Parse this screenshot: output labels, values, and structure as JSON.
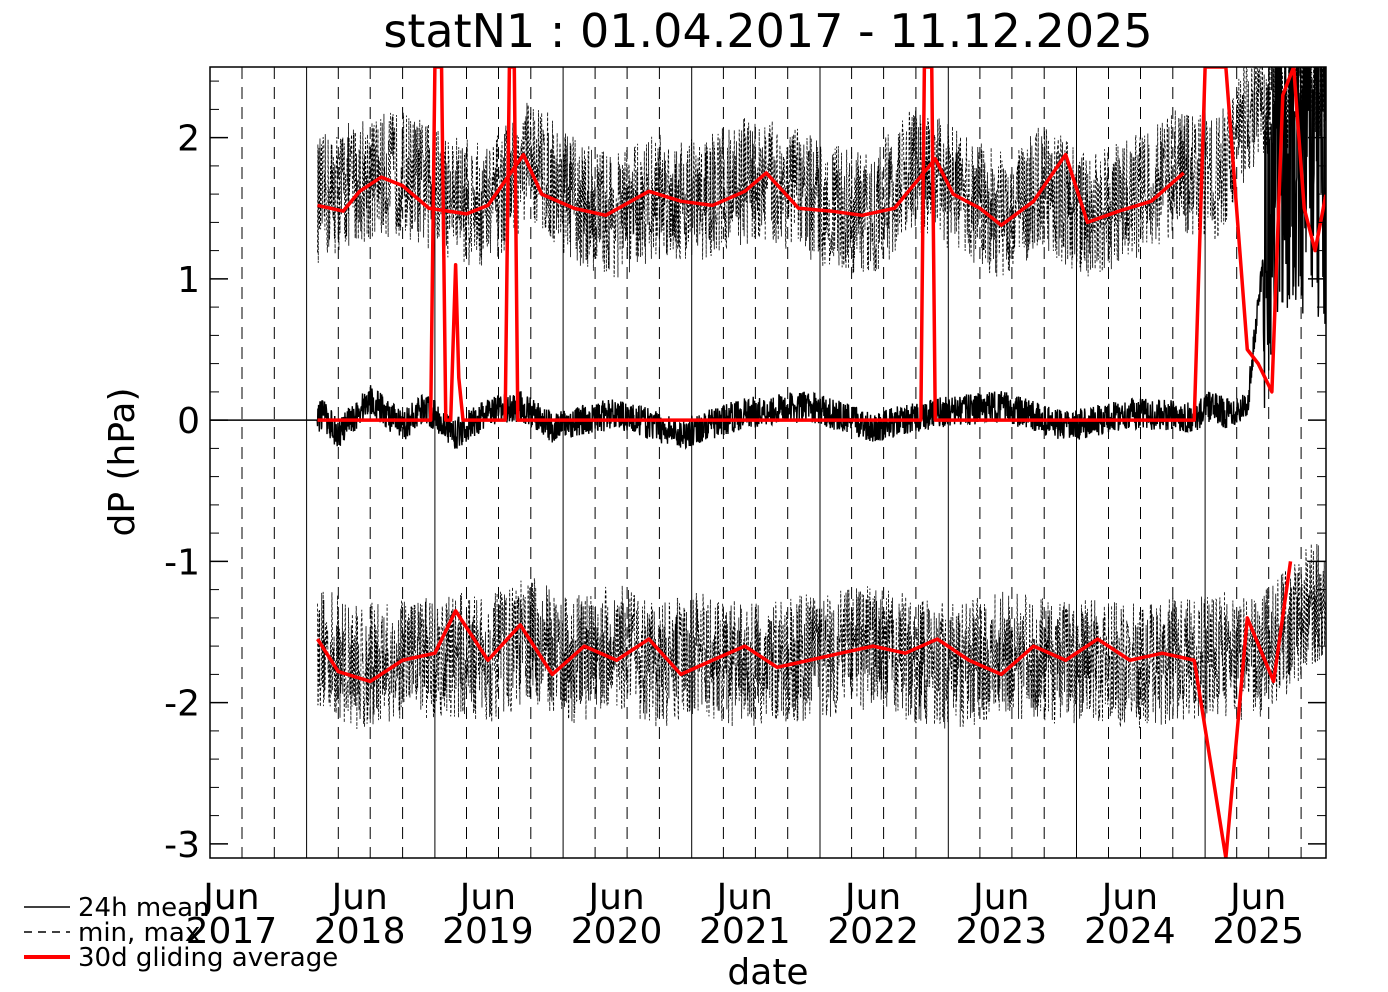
{
  "chart_data": {
    "type": "line",
    "title": "statN1 : 01.04.2017 - 11.12.2025",
    "xlabel": "date",
    "ylabel": "dP (hPa)",
    "x_range": [
      "2017-04-01",
      "2025-12-11"
    ],
    "ylim": [
      -3.1,
      2.5
    ],
    "y_ticks": [
      -3,
      -2,
      -1,
      0,
      1,
      2
    ],
    "x_tick_labels": [
      {
        "month": "Jun",
        "year": "2017",
        "date": "2017-06-01"
      },
      {
        "month": "Jun",
        "year": "2018",
        "date": "2018-06-01"
      },
      {
        "month": "Jun",
        "year": "2019",
        "date": "2019-06-01"
      },
      {
        "month": "Jun",
        "year": "2020",
        "date": "2020-06-01"
      },
      {
        "month": "Jun",
        "year": "2021",
        "date": "2021-06-01"
      },
      {
        "month": "Jun",
        "year": "2022",
        "date": "2022-06-01"
      },
      {
        "month": "Jun",
        "year": "2023",
        "date": "2023-06-01"
      },
      {
        "month": "Jun",
        "year": "2024",
        "date": "2024-06-01"
      },
      {
        "month": "Jun",
        "year": "2025",
        "date": "2025-06-01"
      }
    ],
    "grid": "vertical lines at quarters (solid at January, dashed otherwise)",
    "legend": "bottom-left",
    "series": [
      {
        "name": "24h mean",
        "style": "solid",
        "color": "#000000",
        "dates": [
          "2017-04-01",
          "2018-01-31",
          "2018-02-15",
          "2018-04-01",
          "2018-07-01",
          "2018-10-01",
          "2018-12-01",
          "2019-03-01",
          "2019-06-01",
          "2019-09-01",
          "2019-12-01",
          "2020-06-01",
          "2020-12-01",
          "2021-06-01",
          "2021-12-01",
          "2022-06-01",
          "2022-12-01",
          "2023-06-01",
          "2023-12-01",
          "2024-06-01",
          "2024-12-01",
          "2025-01-15",
          "2025-03-01",
          "2025-05-01",
          "2025-07-01",
          "2025-09-01",
          "2025-12-11"
        ],
        "values": [
          0,
          0,
          0.05,
          -0.1,
          0.15,
          -0.05,
          0.1,
          -0.1,
          0.05,
          0.1,
          -0.05,
          0.05,
          -0.1,
          0.05,
          0.1,
          -0.05,
          0.05,
          0.1,
          -0.05,
          0.05,
          0.02,
          0.1,
          0.05,
          0.1,
          1.5,
          2.0,
          1.8
        ]
      },
      {
        "name": "min, max",
        "style": "dashed",
        "color": "#000000",
        "dates": [
          "2018-02-01",
          "2018-06-01",
          "2018-10-01",
          "2019-02-01",
          "2019-06-01",
          "2019-10-01",
          "2020-02-01",
          "2020-06-01",
          "2020-10-01",
          "2021-02-01",
          "2021-06-01",
          "2021-10-01",
          "2022-02-01",
          "2022-06-01",
          "2022-10-01",
          "2023-02-01",
          "2023-06-01",
          "2023-10-01",
          "2024-02-01",
          "2024-06-01",
          "2024-10-01",
          "2025-02-01",
          "2025-06-01",
          "2025-10-01",
          "2025-12-11"
        ],
        "max_values": [
          1.55,
          1.7,
          1.75,
          1.6,
          1.5,
          1.85,
          1.55,
          1.45,
          1.6,
          1.55,
          1.7,
          1.65,
          1.5,
          1.45,
          1.8,
          1.6,
          1.45,
          1.65,
          1.45,
          1.55,
          1.75,
          1.7,
          2.3,
          2.4,
          2.4
        ],
        "min_values": [
          -1.6,
          -1.75,
          -1.7,
          -1.65,
          -1.7,
          -1.55,
          -1.7,
          -1.6,
          -1.75,
          -1.65,
          -1.75,
          -1.7,
          -1.65,
          -1.6,
          -1.7,
          -1.75,
          -1.65,
          -1.7,
          -1.7,
          -1.75,
          -1.7,
          -1.65,
          -1.7,
          -1.4,
          -1.2
        ]
      },
      {
        "name": "30d gliding average",
        "style": "solid",
        "color": "#ff0000",
        "mean_dates": [
          "2018-02-01",
          "2018-12-20",
          "2019-01-01",
          "2019-01-20",
          "2019-02-01",
          "2019-02-15",
          "2019-03-01",
          "2019-03-10",
          "2019-03-22",
          "2019-07-20",
          "2019-08-01",
          "2019-08-15",
          "2019-08-25",
          "2019-09-05",
          "2022-10-15",
          "2022-10-25",
          "2022-11-15",
          "2022-11-25",
          "2024-12-01",
          "2025-01-01",
          "2025-01-20",
          "2025-02-10",
          "2025-03-01",
          "2025-05-01",
          "2025-06-01",
          "2025-07-10",
          "2025-08-10",
          "2025-09-10",
          "2025-10-10",
          "2025-11-10",
          "2025-12-11"
        ],
        "mean_values": [
          0,
          0,
          2.5,
          2.5,
          0,
          0,
          1.1,
          0.3,
          0,
          0,
          2.5,
          2.5,
          0,
          0,
          0,
          2.5,
          2.5,
          0,
          0,
          2.5,
          2.5,
          2.5,
          2.5,
          0.5,
          0.4,
          0.2,
          2.3,
          2.5,
          1.5,
          1.2,
          1.6
        ],
        "upper_dates": [
          "2018-02-01",
          "2018-04-15",
          "2018-06-01",
          "2018-08-01",
          "2018-10-01",
          "2018-12-15",
          "2019-04-01",
          "2019-06-01",
          "2019-09-10",
          "2019-11-01",
          "2020-02-01",
          "2020-05-01",
          "2020-09-01",
          "2020-12-01",
          "2021-03-01",
          "2021-06-01",
          "2021-08-01",
          "2021-11-01",
          "2022-02-01",
          "2022-05-01",
          "2022-08-01",
          "2022-11-25",
          "2023-01-15",
          "2023-04-01",
          "2023-06-01",
          "2023-09-01",
          "2023-12-01",
          "2024-02-01",
          "2024-05-01",
          "2024-08-01",
          "2024-11-01"
        ],
        "upper_values": [
          1.52,
          1.48,
          1.62,
          1.72,
          1.66,
          1.5,
          1.46,
          1.52,
          1.88,
          1.6,
          1.5,
          1.45,
          1.62,
          1.55,
          1.52,
          1.62,
          1.75,
          1.5,
          1.48,
          1.45,
          1.5,
          1.85,
          1.6,
          1.5,
          1.38,
          1.55,
          1.88,
          1.4,
          1.48,
          1.55,
          1.75
        ],
        "lower_dates": [
          "2018-02-01",
          "2018-04-01",
          "2018-07-01",
          "2018-10-01",
          "2019-01-01",
          "2019-03-01",
          "2019-06-01",
          "2019-09-01",
          "2019-12-01",
          "2020-03-01",
          "2020-06-01",
          "2020-09-01",
          "2020-12-01",
          "2021-03-01",
          "2021-06-01",
          "2021-09-01",
          "2021-12-01",
          "2022-03-01",
          "2022-06-01",
          "2022-09-01",
          "2022-12-01",
          "2023-03-01",
          "2023-06-01",
          "2023-09-01",
          "2023-12-01",
          "2024-03-01",
          "2024-06-01",
          "2024-09-01",
          "2024-12-01",
          "2025-03-01",
          "2025-05-01",
          "2025-07-15",
          "2025-09-01"
        ],
        "lower_values": [
          -1.55,
          -1.78,
          -1.85,
          -1.7,
          -1.65,
          -1.35,
          -1.7,
          -1.45,
          -1.8,
          -1.6,
          -1.7,
          -1.55,
          -1.8,
          -1.7,
          -1.6,
          -1.75,
          -1.7,
          -1.65,
          -1.6,
          -1.65,
          -1.55,
          -1.7,
          -1.8,
          -1.6,
          -1.7,
          -1.55,
          -1.7,
          -1.65,
          -1.7,
          -3.1,
          -1.4,
          -1.85,
          -1.0
        ]
      }
    ]
  }
}
